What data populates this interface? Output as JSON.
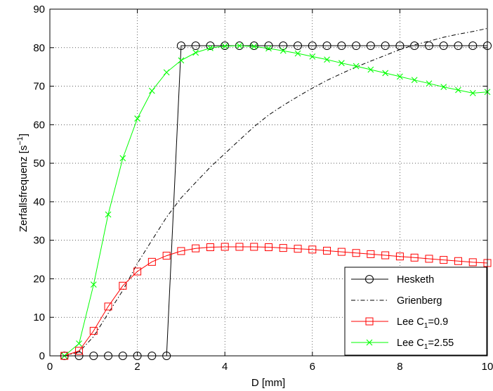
{
  "chart_data": {
    "type": "line",
    "xlabel": "D  [mm]",
    "ylabel": "Zerfallsfrequenz  [s",
    "ylabel_sup": "−1",
    "ylabel_tail": "]",
    "xlim": [
      0,
      10
    ],
    "ylim": [
      0,
      90
    ],
    "x_ticks": [
      0,
      2,
      4,
      6,
      8,
      10
    ],
    "y_ticks": [
      0,
      10,
      20,
      30,
      40,
      50,
      60,
      70,
      80,
      90
    ],
    "grid": true,
    "legend_position": "bottom-right",
    "series": [
      {
        "name": "Hesketh",
        "name_sub": "",
        "name_tail": "",
        "color": "#000000",
        "line_style": "solid",
        "marker": "circle",
        "x": [
          0.333,
          0.667,
          1.0,
          1.333,
          1.667,
          2.0,
          2.333,
          2.667,
          3.0,
          3.333,
          3.667,
          4.0,
          4.333,
          4.667,
          5.0,
          5.333,
          5.667,
          6.0,
          6.333,
          6.667,
          7.0,
          7.333,
          7.667,
          8.0,
          8.333,
          8.667,
          9.0,
          9.333,
          9.667,
          10.0
        ],
        "y": [
          0,
          0,
          0,
          0,
          0,
          0,
          0,
          0,
          80.5,
          80.5,
          80.5,
          80.5,
          80.5,
          80.5,
          80.5,
          80.5,
          80.5,
          80.5,
          80.5,
          80.5,
          80.5,
          80.5,
          80.5,
          80.5,
          80.5,
          80.5,
          80.5,
          80.5,
          80.5,
          80.5
        ]
      },
      {
        "name": "Grienberg",
        "name_sub": "",
        "name_tail": "",
        "color": "#000000",
        "line_style": "dashdot",
        "marker": "none",
        "x": [
          0.333,
          0.667,
          1.0,
          1.333,
          1.667,
          2.0,
          2.333,
          2.667,
          3.0,
          3.333,
          3.667,
          4.0,
          4.333,
          4.667,
          5.0,
          5.333,
          5.667,
          6.0,
          6.333,
          6.667,
          7.0,
          7.333,
          7.667,
          8.0,
          8.333,
          8.667,
          9.0,
          9.333,
          9.667,
          10.0
        ],
        "y": [
          0,
          1,
          5,
          11,
          17,
          24,
          30,
          36,
          41,
          45,
          49,
          52.5,
          56,
          59.5,
          62.5,
          65,
          67.3,
          69.5,
          71.5,
          73.3,
          75,
          76.5,
          78,
          79.5,
          80.7,
          81.7,
          82.7,
          83.5,
          84.2,
          85
        ]
      },
      {
        "name": "Lee C",
        "name_sub": "1",
        "name_tail": "=0.9",
        "color": "#ff0000",
        "line_style": "solid",
        "marker": "square",
        "x": [
          0.333,
          0.667,
          1.0,
          1.333,
          1.667,
          2.0,
          2.333,
          2.667,
          3.0,
          3.333,
          3.667,
          4.0,
          4.333,
          4.667,
          5.0,
          5.333,
          5.667,
          6.0,
          6.333,
          6.667,
          7.0,
          7.333,
          7.667,
          8.0,
          8.333,
          8.667,
          9.0,
          9.333,
          9.667,
          10.0
        ],
        "y": [
          0,
          1.3,
          6.5,
          12.8,
          18.2,
          21.9,
          24.4,
          26.0,
          27.2,
          27.9,
          28.2,
          28.3,
          28.3,
          28.3,
          28.2,
          28.0,
          27.8,
          27.6,
          27.3,
          27.0,
          26.7,
          26.4,
          26.1,
          25.8,
          25.5,
          25.2,
          24.9,
          24.6,
          24.3,
          24.1
        ]
      },
      {
        "name": "Lee C",
        "name_sub": "1",
        "name_tail": "=2.55",
        "color": "#00ff00",
        "line_style": "solid",
        "marker": "x",
        "x": [
          0.333,
          0.667,
          1.0,
          1.333,
          1.667,
          2.0,
          2.333,
          2.667,
          3.0,
          3.333,
          3.667,
          4.0,
          4.333,
          4.667,
          5.0,
          5.333,
          5.667,
          6.0,
          6.333,
          6.667,
          7.0,
          7.333,
          7.667,
          8.0,
          8.333,
          8.667,
          9.0,
          9.333,
          9.667,
          10.0
        ],
        "y": [
          0,
          3.2,
          18.5,
          36.7,
          51.3,
          61.6,
          68.8,
          73.6,
          76.7,
          78.7,
          79.9,
          80.4,
          80.5,
          80.3,
          79.8,
          79.2,
          78.5,
          77.7,
          76.9,
          76.0,
          75.2,
          74.3,
          73.4,
          72.5,
          71.6,
          70.7,
          69.8,
          69.0,
          68.2,
          68.5
        ]
      }
    ]
  }
}
